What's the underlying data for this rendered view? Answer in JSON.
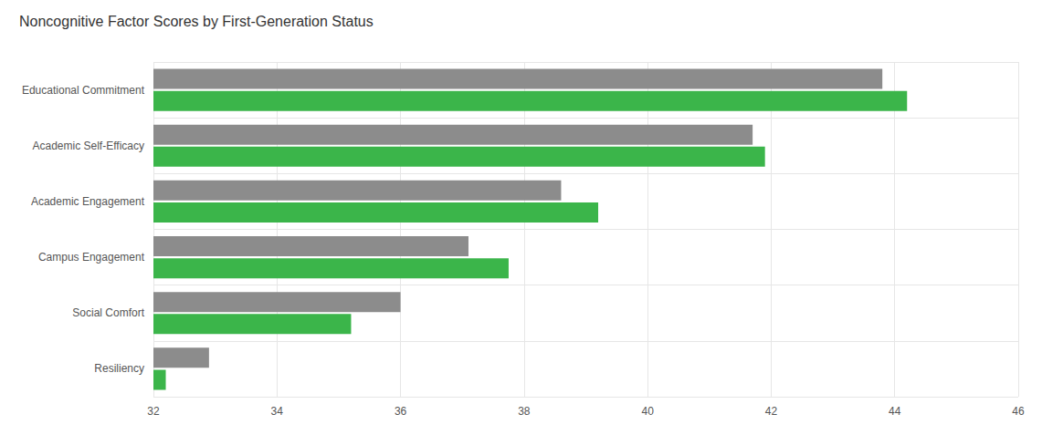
{
  "chart_data": {
    "type": "bar",
    "title": "Noncognitive Factor Scores by First-Generation Status",
    "orientation": "horizontal",
    "categories": [
      "Educational Commitment",
      "Academic Self-Efficacy",
      "Academic Engagement",
      "Campus Engagement",
      "Social Comfort",
      "Resiliency"
    ],
    "series": [
      {
        "color": "#8c8c8c",
        "values": [
          43.8,
          41.7,
          38.6,
          37.1,
          36.0,
          32.9
        ]
      },
      {
        "color": "#3bb54a",
        "values": [
          44.2,
          41.9,
          39.2,
          37.75,
          35.2,
          32.2
        ]
      }
    ],
    "xlim": [
      32,
      46
    ],
    "xticks": [
      32,
      34,
      36,
      38,
      40,
      42,
      44,
      46
    ],
    "grid": true
  }
}
